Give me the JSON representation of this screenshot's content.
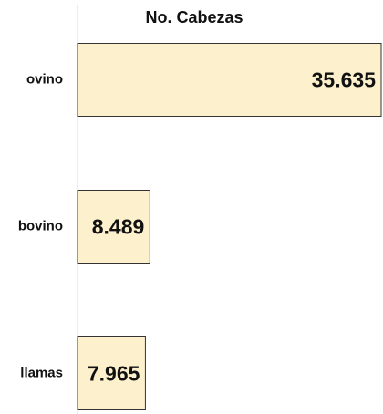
{
  "chart_data": {
    "type": "bar",
    "orientation": "horizontal",
    "title": "No. Cabezas",
    "categories": [
      "ovino",
      "bovino",
      "llamas"
    ],
    "values": [
      35635,
      8489,
      7965
    ],
    "value_labels": [
      "35.635",
      "8.489",
      "7.965"
    ],
    "color": "#fdf0cc",
    "xlim": [
      0,
      35635
    ]
  }
}
